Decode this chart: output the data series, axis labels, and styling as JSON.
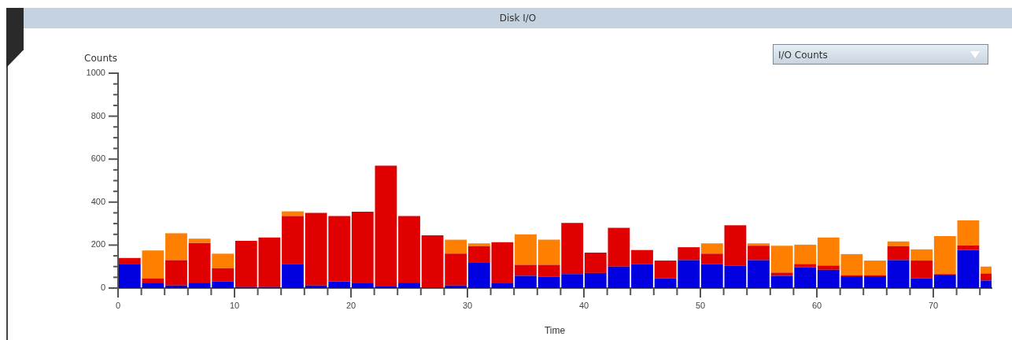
{
  "chart_data": {
    "type": "bar",
    "title": "Disk I/O",
    "xlabel": "Time",
    "ylabel": "Counts",
    "stacked": true,
    "grid": false,
    "legend": false,
    "annotations": [
      "I/O Counts"
    ],
    "x": [
      1,
      3,
      5,
      7,
      9,
      11,
      13,
      15,
      17,
      19,
      21,
      23,
      25,
      27,
      29,
      31,
      33,
      35,
      37,
      39,
      41,
      43,
      45,
      47,
      49,
      51,
      53,
      55,
      57,
      59,
      61,
      63,
      65,
      67,
      69,
      71,
      73,
      75
    ],
    "xlim": [
      0,
      75
    ],
    "xticks": [
      0,
      {
        "value": 2,
        "label": null
      },
      {
        "value": 4,
        "label": null
      },
      {
        "value": 6,
        "label": null
      },
      {
        "value": 8,
        "label": null
      },
      10,
      {
        "value": 12,
        "label": null
      },
      {
        "value": 14,
        "label": null
      },
      {
        "value": 16,
        "label": null
      },
      {
        "value": 18,
        "label": null
      },
      20,
      {
        "value": 22,
        "label": null
      },
      {
        "value": 24,
        "label": null
      },
      {
        "value": 26,
        "label": null
      },
      {
        "value": 28,
        "label": null
      },
      30,
      {
        "value": 32,
        "label": null
      },
      {
        "value": 34,
        "label": null
      },
      {
        "value": 36,
        "label": null
      },
      {
        "value": 38,
        "label": null
      },
      40,
      {
        "value": 42,
        "label": null
      },
      {
        "value": 44,
        "label": null
      },
      {
        "value": 46,
        "label": null
      },
      {
        "value": 48,
        "label": null
      },
      50,
      {
        "value": 52,
        "label": null
      },
      {
        "value": 54,
        "label": null
      },
      {
        "value": 56,
        "label": null
      },
      {
        "value": 58,
        "label": null
      },
      60,
      {
        "value": 62,
        "label": null
      },
      {
        "value": 64,
        "label": null
      },
      {
        "value": 66,
        "label": null
      },
      {
        "value": 68,
        "label": null
      },
      70,
      {
        "value": 72,
        "label": null
      },
      {
        "value": 74,
        "label": null
      }
    ],
    "ylim": [
      0,
      1000
    ],
    "yticks": [
      0,
      {
        "value": 50,
        "label": null
      },
      {
        "value": 100,
        "label": null
      },
      {
        "value": 150,
        "label": null
      },
      200,
      {
        "value": 250,
        "label": null
      },
      {
        "value": 300,
        "label": null
      },
      {
        "value": 350,
        "label": null
      },
      400,
      {
        "value": 450,
        "label": null
      },
      {
        "value": 500,
        "label": null
      },
      {
        "value": 550,
        "label": null
      },
      600,
      {
        "value": 650,
        "label": null
      },
      {
        "value": 700,
        "label": null
      },
      {
        "value": 750,
        "label": null
      },
      800,
      {
        "value": 850,
        "label": null
      },
      {
        "value": 900,
        "label": null
      },
      {
        "value": 950,
        "label": null
      },
      1000
    ],
    "series": [
      {
        "color": "#0000e0",
        "values": [
          110,
          25,
          12,
          25,
          30,
          5,
          5,
          112,
          12,
          30,
          22,
          10,
          25,
          3,
          12,
          120,
          22,
          57,
          52,
          65,
          70,
          100,
          112,
          45,
          130,
          112,
          105,
          130,
          57,
          97,
          85,
          55,
          55,
          130,
          45,
          62,
          178,
          35
        ]
      },
      {
        "color": "#e00000",
        "values": [
          30,
          20,
          118,
          185,
          62,
          215,
          230,
          223,
          338,
          305,
          333,
          560,
          310,
          242,
          148,
          75,
          191,
          51,
          56,
          238,
          95,
          180,
          65,
          83,
          60,
          48,
          187,
          67,
          15,
          15,
          20,
          5,
          5,
          65,
          83,
          3,
          20,
          33
        ]
      },
      {
        "color": "#ff8000",
        "values": [
          0,
          130,
          125,
          20,
          68,
          0,
          0,
          22,
          0,
          0,
          0,
          0,
          0,
          0,
          65,
          13,
          0,
          142,
          117,
          0,
          0,
          0,
          0,
          0,
          0,
          48,
          0,
          11,
          125,
          90,
          130,
          98,
          68,
          22,
          52,
          177,
          117,
          32
        ]
      }
    ]
  }
}
